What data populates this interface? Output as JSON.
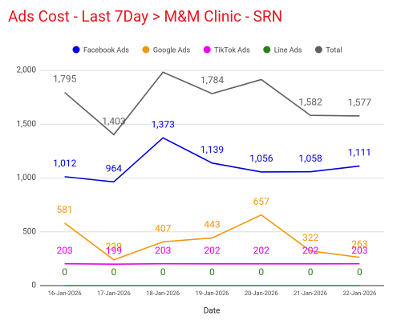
{
  "chart_data": {
    "type": "line",
    "title": "Ads Cost - Last 7Day > M&M Clinic - SRN",
    "x_label": "Date",
    "categories": [
      "16-Jan-2026",
      "17-Jan-2026",
      "18-Jan-2026",
      "19-Jan-2026",
      "20-Jan-2026",
      "21-Jan-2026",
      "22-Jan-2026"
    ],
    "series": [
      {
        "name": "Facebook Ads",
        "color": "#0000e0",
        "values": [
          1012,
          964,
          1373,
          1139,
          1056,
          1058,
          1111
        ],
        "value_labels": [
          "1,012",
          "964",
          "1,373",
          "1,139",
          "1,056",
          "1,058",
          "1,111"
        ]
      },
      {
        "name": "Google Ads",
        "color": "#f2960f",
        "values": [
          581,
          239,
          407,
          443,
          657,
          322,
          263
        ]
      },
      {
        "name": "TikTok Ads",
        "color": "#ee00ee",
        "values": [
          203,
          199,
          203,
          202,
          202,
          202,
          203
        ]
      },
      {
        "name": "Line Ads",
        "color": "#2e7d1e",
        "values": [
          0,
          0,
          0,
          0,
          0,
          0,
          0
        ]
      },
      {
        "name": "Total",
        "color": "#606060",
        "values": [
          1795,
          1403,
          1983,
          1784,
          1915,
          1582,
          1577
        ],
        "value_labels": [
          "1,795",
          "1,403",
          null,
          "1,784",
          null,
          "1,582",
          "1,577"
        ]
      }
    ],
    "ylim": [
      0,
      2000
    ],
    "yticks": [
      0,
      500,
      {
        "value": 1000,
        "label": "1,000"
      },
      {
        "value": 1500,
        "label": "1,500"
      },
      {
        "value": 2000,
        "label": "2,000"
      }
    ],
    "grid": true,
    "legend": "top"
  }
}
